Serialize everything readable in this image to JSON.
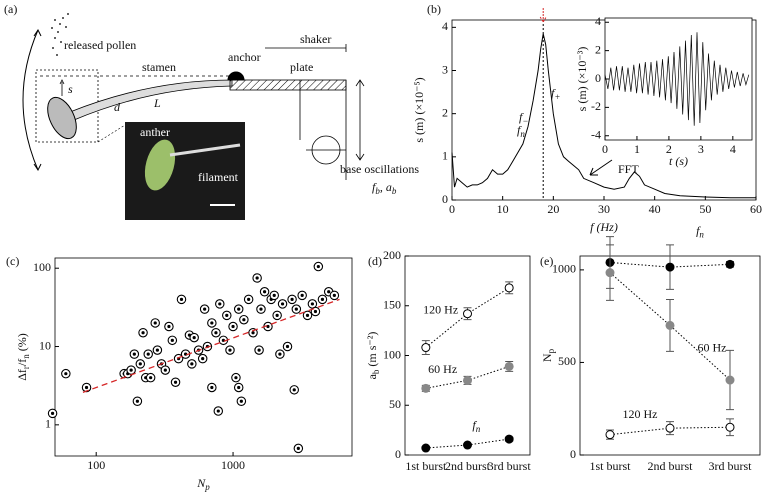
{
  "diagram": {
    "panel": "(a)",
    "labels": {
      "pollen": "released pollen",
      "stamen": "stamen",
      "anchor": "anchor",
      "shaker": "shaker",
      "plate": "plate",
      "s": "s",
      "d": "d",
      "L": "L",
      "anther": "anther",
      "filament": "filament",
      "base": "base oscillations",
      "base_sym": [
        "f",
        "b",
        ", a",
        "b"
      ]
    }
  },
  "chart_data": [
    {
      "type": "line",
      "panel": "(b)",
      "xlabel": "f (Hz)",
      "ylabel": "s (m) (×10⁻⁵)",
      "color": "#000000",
      "annotations": [
        [
          "f",
          "−"
        ],
        [
          "f",
          "+"
        ],
        [
          "f",
          "n"
        ],
        "FFT"
      ],
      "peak_x": 18,
      "x": [
        0,
        0.5,
        1,
        2,
        3,
        4,
        5,
        6,
        7,
        8,
        9,
        10,
        11,
        12,
        13,
        14,
        15,
        16,
        17,
        17.5,
        18,
        18.5,
        19,
        20,
        21,
        22,
        23,
        24,
        25,
        26,
        28,
        30,
        32,
        34,
        35,
        36,
        37,
        38,
        40,
        42,
        45,
        50,
        55,
        60
      ],
      "values": [
        1.1,
        0.3,
        0.5,
        0.4,
        0.3,
        0.35,
        0.35,
        0.4,
        0.5,
        0.7,
        0.6,
        0.6,
        0.7,
        0.9,
        1.1,
        1.3,
        1.7,
        2.3,
        3.0,
        3.5,
        3.85,
        3.6,
        3.0,
        2.0,
        1.3,
        1.0,
        0.9,
        0.8,
        0.7,
        0.5,
        0.4,
        0.3,
        0.25,
        0.3,
        0.5,
        0.65,
        0.55,
        0.35,
        0.25,
        0.15,
        0.1,
        0.07,
        0.05,
        0.05
      ],
      "xlim": [
        0,
        60
      ],
      "ylim": [
        0,
        4.17
      ],
      "xticks": [
        0,
        10,
        20,
        30,
        40,
        50,
        60
      ],
      "yticks": [
        0,
        1,
        2,
        3,
        4
      ]
    },
    {
      "type": "line",
      "xlabel": "t (s)",
      "ylabel": "s (m) (×10⁻³)",
      "color": "#000000",
      "x": [
        0,
        0.09,
        0.18,
        0.27,
        0.36,
        0.45,
        0.54,
        0.63,
        0.72,
        0.81,
        0.9,
        0.99,
        1.08,
        1.17,
        1.26,
        1.35,
        1.44,
        1.53,
        1.62,
        1.71,
        1.8,
        1.89,
        1.98,
        2.07,
        2.16,
        2.25,
        2.34,
        2.43,
        2.52,
        2.61,
        2.7,
        2.79,
        2.88,
        2.97,
        3.06,
        3.15,
        3.24,
        3.33,
        3.42,
        3.51,
        3.6,
        3.69,
        3.78,
        3.87,
        3.96,
        4.05,
        4.14,
        4.23,
        4.32,
        4.41,
        4.5
      ],
      "values": [
        0.3,
        -0.7,
        0.8,
        -0.8,
        0.9,
        -0.8,
        0.9,
        -0.9,
        0.8,
        -0.9,
        1.0,
        -1.0,
        1.1,
        -1.0,
        1.2,
        -1.1,
        1.2,
        -1.2,
        1.3,
        -1.3,
        1.4,
        -1.5,
        1.6,
        -1.7,
        1.9,
        -2.1,
        2.3,
        -2.5,
        2.7,
        -2.9,
        3.1,
        -3.3,
        3.3,
        -3.1,
        2.6,
        -2.2,
        1.8,
        -1.5,
        1.3,
        -1.1,
        1.0,
        -0.9,
        0.8,
        -0.7,
        0.6,
        -0.6,
        0.5,
        -0.5,
        0.4,
        -0.4,
        0.3
      ],
      "xlim": [
        0,
        4.6
      ],
      "ylim": [
        -4.3,
        4.3
      ],
      "xticks": [
        0,
        1,
        2,
        3,
        4
      ],
      "yticks": [
        -4,
        -2,
        0,
        2,
        4
      ]
    },
    {
      "type": "scatter",
      "panel": "(c)",
      "xlabel": [
        "N",
        "p"
      ],
      "ylabel": [
        "Δf",
        "r",
        "/f",
        "n",
        " (%)"
      ],
      "log": true,
      "color": "#000000",
      "x": [
        48,
        60,
        85,
        160,
        170,
        180,
        190,
        200,
        210,
        220,
        230,
        240,
        250,
        270,
        280,
        300,
        320,
        340,
        360,
        380,
        400,
        420,
        450,
        480,
        500,
        520,
        560,
        600,
        620,
        650,
        700,
        750,
        780,
        800,
        850,
        900,
        950,
        1000,
        1050,
        1100,
        1150,
        1200,
        1300,
        1400,
        1500,
        1550,
        1600,
        1700,
        1800,
        1900,
        2000,
        2100,
        2200,
        2300,
        2500,
        2700,
        2900,
        3000,
        3200,
        3500,
        3800,
        4000,
        4200,
        4500,
        5000,
        5500,
        2800,
        1100,
        700
      ],
      "values": [
        1.4,
        4.5,
        3,
        4.5,
        4.5,
        5,
        8,
        2,
        6,
        15,
        4,
        8,
        4,
        20,
        9,
        6,
        5,
        18,
        12,
        3.5,
        7,
        40,
        8,
        14,
        6,
        13,
        9,
        7,
        30,
        10,
        20,
        15,
        1.5,
        35,
        12,
        25,
        9,
        18,
        4,
        30,
        2,
        22,
        40,
        15,
        75,
        9,
        30,
        50,
        18,
        40,
        45,
        25,
        8,
        35,
        10,
        40,
        30,
        0.5,
        45,
        25,
        35,
        28,
        105,
        40,
        50,
        45,
        2.8,
        3,
        3
      ],
      "fit": {
        "x": [
          80,
          6000
        ],
        "values": [
          2.6,
          40
        ],
        "color": "#d62728"
      },
      "xlim": [
        50,
        7400
      ],
      "ylim": [
        0.4,
        135
      ],
      "xticks": [
        100,
        1000
      ],
      "yticks": [
        1,
        10,
        100
      ]
    },
    {
      "type": "errorline",
      "panel": "(d)",
      "ylabel": [
        "a",
        "b",
        " (m s⁻²)"
      ],
      "categories": [
        "1st burst",
        "2nd burst",
        "3rd burst"
      ],
      "ylim": [
        0,
        200
      ],
      "yticks": [
        0,
        50,
        100,
        150,
        200
      ],
      "series": [
        {
          "name": "120 Hz",
          "color": "#ffffff",
          "values": [
            108,
            142,
            168
          ],
          "errors": [
            7,
            6,
            6
          ]
        },
        {
          "name": "60 Hz",
          "color": "#888888",
          "values": [
            67,
            75,
            89
          ],
          "errors": [
            3,
            4,
            5
          ]
        },
        {
          "name": [
            "f",
            "n"
          ],
          "color": "#000000",
          "values": [
            7,
            10,
            16
          ],
          "errors": [
            1,
            1,
            2
          ]
        }
      ]
    },
    {
      "type": "errorline",
      "panel": "(e)",
      "ylabel": [
        "N",
        "p"
      ],
      "categories": [
        "1st burst",
        "2nd burst",
        "3rd burst"
      ],
      "ylim": [
        0,
        1075
      ],
      "yticks": [
        0,
        500,
        1000
      ],
      "series": [
        {
          "name": [
            "f",
            "n"
          ],
          "color": "#000000",
          "values": [
            1040,
            1015,
            1030
          ],
          "errors": [
            140,
            120,
            15
          ]
        },
        {
          "name": "60 Hz",
          "color": "#888888",
          "values": [
            985,
            700,
            405
          ],
          "errors": [
            150,
            140,
            160
          ]
        },
        {
          "name": "120 Hz",
          "color": "#ffffff",
          "values": [
            110,
            145,
            150
          ],
          "errors": [
            25,
            35,
            45
          ]
        }
      ]
    }
  ]
}
